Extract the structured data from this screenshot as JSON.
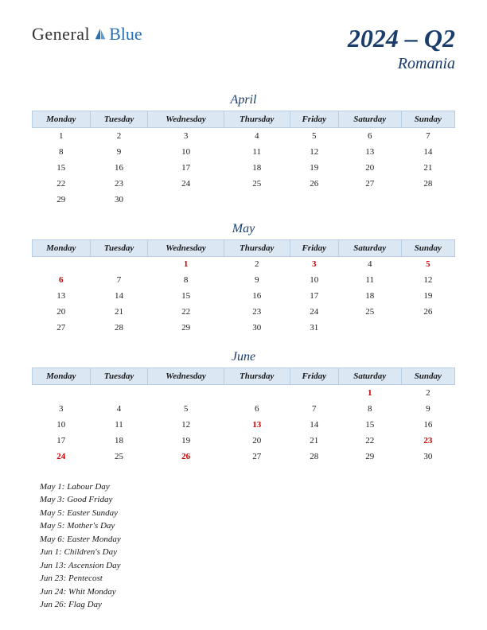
{
  "logo": {
    "general": "General",
    "blue": "Blue"
  },
  "title": {
    "year_quarter": "2024 – Q2",
    "country": "Romania"
  },
  "day_headers": [
    "Monday",
    "Tuesday",
    "Wednesday",
    "Thursday",
    "Friday",
    "Saturday",
    "Sunday"
  ],
  "colors": {
    "header_bg": "#dce7f4",
    "header_border": "#b8cde4",
    "title_color": "#1a3d6b",
    "holiday_color": "#cc0000",
    "logo_blue": "#2b6fb3"
  },
  "months": [
    {
      "name": "April",
      "weeks": [
        [
          {
            "d": "1"
          },
          {
            "d": "2"
          },
          {
            "d": "3"
          },
          {
            "d": "4"
          },
          {
            "d": "5"
          },
          {
            "d": "6"
          },
          {
            "d": "7"
          }
        ],
        [
          {
            "d": "8"
          },
          {
            "d": "9"
          },
          {
            "d": "10"
          },
          {
            "d": "11"
          },
          {
            "d": "12"
          },
          {
            "d": "13"
          },
          {
            "d": "14"
          }
        ],
        [
          {
            "d": "15"
          },
          {
            "d": "16"
          },
          {
            "d": "17"
          },
          {
            "d": "18"
          },
          {
            "d": "19"
          },
          {
            "d": "20"
          },
          {
            "d": "21"
          }
        ],
        [
          {
            "d": "22"
          },
          {
            "d": "23"
          },
          {
            "d": "24"
          },
          {
            "d": "25"
          },
          {
            "d": "26"
          },
          {
            "d": "27"
          },
          {
            "d": "28"
          }
        ],
        [
          {
            "d": "29"
          },
          {
            "d": "30"
          },
          {
            "d": ""
          },
          {
            "d": ""
          },
          {
            "d": ""
          },
          {
            "d": ""
          },
          {
            "d": ""
          }
        ]
      ]
    },
    {
      "name": "May",
      "weeks": [
        [
          {
            "d": ""
          },
          {
            "d": ""
          },
          {
            "d": "1",
            "h": true
          },
          {
            "d": "2"
          },
          {
            "d": "3",
            "h": true
          },
          {
            "d": "4"
          },
          {
            "d": "5",
            "h": true
          }
        ],
        [
          {
            "d": "6",
            "h": true
          },
          {
            "d": "7"
          },
          {
            "d": "8"
          },
          {
            "d": "9"
          },
          {
            "d": "10"
          },
          {
            "d": "11"
          },
          {
            "d": "12"
          }
        ],
        [
          {
            "d": "13"
          },
          {
            "d": "14"
          },
          {
            "d": "15"
          },
          {
            "d": "16"
          },
          {
            "d": "17"
          },
          {
            "d": "18"
          },
          {
            "d": "19"
          }
        ],
        [
          {
            "d": "20"
          },
          {
            "d": "21"
          },
          {
            "d": "22"
          },
          {
            "d": "23"
          },
          {
            "d": "24"
          },
          {
            "d": "25"
          },
          {
            "d": "26"
          }
        ],
        [
          {
            "d": "27"
          },
          {
            "d": "28"
          },
          {
            "d": "29"
          },
          {
            "d": "30"
          },
          {
            "d": "31"
          },
          {
            "d": ""
          },
          {
            "d": ""
          }
        ]
      ]
    },
    {
      "name": "June",
      "weeks": [
        [
          {
            "d": ""
          },
          {
            "d": ""
          },
          {
            "d": ""
          },
          {
            "d": ""
          },
          {
            "d": ""
          },
          {
            "d": "1",
            "h": true
          },
          {
            "d": "2"
          }
        ],
        [
          {
            "d": "3"
          },
          {
            "d": "4"
          },
          {
            "d": "5"
          },
          {
            "d": "6"
          },
          {
            "d": "7"
          },
          {
            "d": "8"
          },
          {
            "d": "9"
          }
        ],
        [
          {
            "d": "10"
          },
          {
            "d": "11"
          },
          {
            "d": "12"
          },
          {
            "d": "13",
            "h": true
          },
          {
            "d": "14"
          },
          {
            "d": "15"
          },
          {
            "d": "16"
          }
        ],
        [
          {
            "d": "17"
          },
          {
            "d": "18"
          },
          {
            "d": "19"
          },
          {
            "d": "20"
          },
          {
            "d": "21"
          },
          {
            "d": "22"
          },
          {
            "d": "23",
            "h": true
          }
        ],
        [
          {
            "d": "24",
            "h": true
          },
          {
            "d": "25"
          },
          {
            "d": "26",
            "h": true
          },
          {
            "d": "27"
          },
          {
            "d": "28"
          },
          {
            "d": "29"
          },
          {
            "d": "30"
          }
        ]
      ]
    }
  ],
  "holidays": [
    "May 1: Labour Day",
    "May 3: Good Friday",
    "May 5: Easter Sunday",
    "May 5: Mother's Day",
    "May 6: Easter Monday",
    "Jun 1: Children's Day",
    "Jun 13: Ascension Day",
    "Jun 23: Pentecost",
    "Jun 24: Whit Monday",
    "Jun 26: Flag Day"
  ]
}
